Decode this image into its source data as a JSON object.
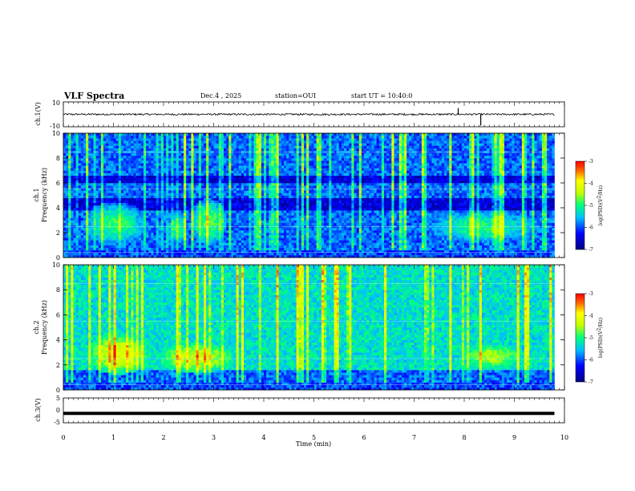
{
  "header": {
    "title": "VLF Spectra",
    "date": "Dec.4 , 2025",
    "station": "station=OUI",
    "start": "start UT = 10:40:0"
  },
  "chart_data": [
    {
      "type": "line",
      "panel": "ch1-waveform",
      "ylabel": "ch.1(V)",
      "ylim": [
        -10,
        10
      ],
      "yticks": [
        "10",
        "-10"
      ],
      "baseline": 0,
      "spikes": [
        {
          "t": 7.88,
          "amp": 2.5
        },
        {
          "t": 8.33,
          "amp": -4.5
        }
      ]
    },
    {
      "type": "heatmap",
      "panel": "ch1-spectrogram",
      "ylabel": "ch.1\nFrequency (kHz)",
      "ylim": [
        0,
        10
      ],
      "yticks": [
        "0",
        "2",
        "4",
        "6",
        "8",
        "10"
      ],
      "xlim": [
        0,
        10
      ],
      "xmax_data": 9.8,
      "colorbar": {
        "label": "log(PSD)(V²/Hz)",
        "range": [
          -7,
          -3
        ],
        "ticks": [
          "-3",
          "-4",
          "-5",
          "-6",
          "-7"
        ]
      },
      "background_level": -5.9,
      "blobs": [
        {
          "t0": 0.5,
          "t1": 1.55,
          "f0": 1.3,
          "f1": 4.1,
          "level": -4.9
        },
        {
          "t0": 2.1,
          "t1": 2.45,
          "f0": 1.3,
          "f1": 3.4,
          "level": -5.0
        },
        {
          "t0": 2.6,
          "t1": 3.2,
          "f0": 1.4,
          "f1": 4.4,
          "level": -4.8
        },
        {
          "t0": 7.4,
          "t1": 9.3,
          "f0": 1.4,
          "f1": 3.6,
          "level": -5.0
        }
      ],
      "dark_bands": [
        {
          "f0": 3.8,
          "f1": 4.8
        },
        {
          "f0": 6.0,
          "f1": 6.6
        }
      ]
    },
    {
      "type": "heatmap",
      "panel": "ch2-spectrogram",
      "ylabel": "ch.2\nFrequency (kHz)",
      "ylim": [
        0,
        10
      ],
      "yticks": [
        "0",
        "2",
        "4",
        "6",
        "8",
        "10"
      ],
      "xlim": [
        0,
        10
      ],
      "xmax_data": 9.8,
      "colorbar": {
        "label": "log(PSD)(V²/Hz)",
        "range": [
          -7,
          -3
        ],
        "ticks": [
          "-3",
          "-4",
          "-5",
          "-6",
          "-7"
        ]
      },
      "background_level": -5.3,
      "blobs": [
        {
          "t0": 0.6,
          "t1": 1.6,
          "f0": 1.6,
          "f1": 4.2,
          "level": -4.2
        },
        {
          "t0": 2.0,
          "t1": 3.3,
          "f0": 1.6,
          "f1": 3.6,
          "level": -4.3
        },
        {
          "t0": 8.0,
          "t1": 9.1,
          "f0": 1.8,
          "f1": 3.6,
          "level": -4.5
        }
      ],
      "dark_bands": [
        {
          "f0": 0.6,
          "f1": 1.5
        }
      ]
    },
    {
      "type": "line",
      "panel": "ch3-waveform",
      "ylabel": "ch.3(V)",
      "ylim": [
        -5,
        5
      ],
      "yticks": [
        "5",
        "0",
        "-5"
      ],
      "baseline": -1.2
    }
  ],
  "xaxis": {
    "label": "Time (min)",
    "ticks": [
      "0",
      "1",
      "2",
      "3",
      "4",
      "5",
      "6",
      "7",
      "8",
      "9",
      "10"
    ]
  }
}
